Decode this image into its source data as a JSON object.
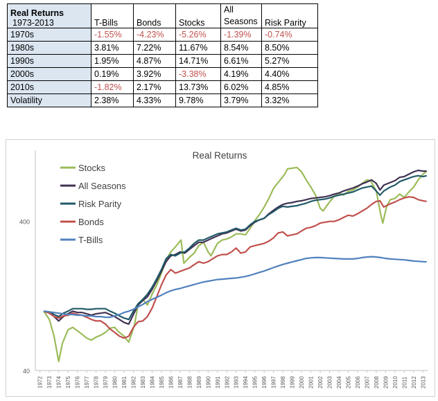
{
  "table": {
    "corner_title": "Real Returns",
    "corner_sub": "1973-2013",
    "headers": [
      "T-Bills",
      "Bonds",
      "Stocks",
      "All\nSeasons",
      "Risk Parity"
    ],
    "rows": [
      {
        "label": "1970s",
        "values": [
          "-1.55%",
          "-4.23%",
          "-5.26%",
          "-1.39%",
          "-0.74%"
        ]
      },
      {
        "label": "1980s",
        "values": [
          "3.81%",
          "7.22%",
          "11.67%",
          "8.54%",
          "8.50%"
        ]
      },
      {
        "label": "1990s",
        "values": [
          "1.95%",
          "4.87%",
          "14.71%",
          "6.61%",
          "5.27%"
        ]
      },
      {
        "label": "2000s",
        "values": [
          "0.19%",
          "3.92%",
          "-3.38%",
          "4.19%",
          "4.40%"
        ]
      },
      {
        "label": "2010s",
        "values": [
          "-1.82%",
          "2.17%",
          "13.73%",
          "6.02%",
          "4.85%"
        ]
      },
      {
        "label": "Volatility",
        "values": [
          "2.38%",
          "4.33%",
          "9.78%",
          "3.79%",
          "3.32%"
        ]
      }
    ]
  },
  "chart_data": {
    "type": "line",
    "title": "Real Returns",
    "xlabel": "",
    "ylabel": "",
    "y_scale": "log",
    "ylim": [
      40,
      1200
    ],
    "yticks": [
      40,
      400
    ],
    "xlim": [
      1972,
      2014
    ],
    "x_tick_labels": [
      "1972",
      "1973",
      "1974",
      "1975",
      "1976",
      "1977",
      "1978",
      "1979",
      "1980",
      "1981",
      "1982",
      "1983",
      "1984",
      "1985",
      "1986",
      "1987",
      "1988",
      "1989",
      "1990",
      "1991",
      "1992",
      "1993",
      "1994",
      "1995",
      "1996",
      "1997",
      "1998",
      "1999",
      "2000",
      "2001",
      "2002",
      "2003",
      "2004",
      "2005",
      "2006",
      "2007",
      "2008",
      "2009",
      "2010",
      "2011",
      "2012",
      "2013"
    ],
    "legend_position": "top-left",
    "series": [
      {
        "name": "Stocks",
        "color": "#9bbb59",
        "x": [
          1972.9,
          1973.5,
          1974.0,
          1974.5,
          1974.9,
          1975.5,
          1976.0,
          1976.5,
          1977.0,
          1977.5,
          1978.0,
          1978.5,
          1979.0,
          1979.5,
          1980.0,
          1980.5,
          1980.9,
          1981.5,
          1982.0,
          1982.6,
          1983.0,
          1983.5,
          1984.0,
          1984.5,
          1985.0,
          1985.5,
          1986.0,
          1986.5,
          1987.0,
          1987.6,
          1987.9,
          1988.5,
          1989.0,
          1989.5,
          1990.0,
          1990.5,
          1990.8,
          1991.5,
          1992.0,
          1992.5,
          1993.0,
          1993.5,
          1994.0,
          1994.5,
          1995.0,
          1995.5,
          1996.0,
          1996.5,
          1997.0,
          1997.5,
          1998.0,
          1998.5,
          1998.7,
          1999.0,
          1999.5,
          2000.0,
          2000.5,
          2001.0,
          2001.5,
          2002.0,
          2002.5,
          2002.8,
          2003.5,
          2004.0,
          2004.5,
          2005.0,
          2005.5,
          2006.0,
          2006.5,
          2007.0,
          2007.5,
          2007.9,
          2008.5,
          2009.0,
          2009.2,
          2009.6,
          2010.0,
          2010.5,
          2011.0,
          2011.5,
          2012.0,
          2012.5,
          2013.0,
          2013.5,
          2013.9
        ],
        "values": [
          100,
          88,
          68,
          46,
          61,
          75,
          78,
          74,
          70,
          66,
          64,
          67,
          69,
          72,
          77,
          78,
          73,
          68,
          62,
          80,
          110,
          120,
          110,
          130,
          150,
          180,
          220,
          250,
          270,
          300,
          210,
          230,
          245,
          275,
          290,
          250,
          235,
          285,
          300,
          305,
          315,
          330,
          330,
          325,
          360,
          405,
          445,
          500,
          570,
          665,
          730,
          800,
          830,
          900,
          910,
          920,
          860,
          760,
          680,
          600,
          490,
          470,
          540,
          590,
          620,
          600,
          635,
          650,
          680,
          720,
          760,
          750,
          640,
          440,
          390,
          500,
          560,
          570,
          610,
          580,
          630,
          680,
          760,
          830,
          870
        ]
      },
      {
        "name": "All Seasons",
        "color": "#403152",
        "x": [
          1972.9,
          1973.5,
          1974.0,
          1974.5,
          1975.0,
          1975.5,
          1976.0,
          1976.5,
          1977.0,
          1977.5,
          1978.0,
          1978.5,
          1979.0,
          1979.5,
          1980.0,
          1980.5,
          1981.0,
          1981.5,
          1982.0,
          1982.5,
          1983.0,
          1983.5,
          1984.0,
          1984.5,
          1985.0,
          1985.5,
          1986.0,
          1986.5,
          1987.0,
          1987.5,
          1988.0,
          1988.5,
          1989.0,
          1989.5,
          1990.0,
          1990.5,
          1991.0,
          1991.5,
          1992.0,
          1992.5,
          1993.0,
          1993.5,
          1994.0,
          1994.5,
          1995.0,
          1995.5,
          1996.0,
          1996.5,
          1997.0,
          1997.5,
          1998.0,
          1998.5,
          1999.0,
          1999.5,
          2000.0,
          2000.5,
          2001.0,
          2001.5,
          2002.0,
          2002.5,
          2003.0,
          2003.5,
          2004.0,
          2004.5,
          2005.0,
          2005.5,
          2006.0,
          2006.5,
          2007.0,
          2007.5,
          2008.0,
          2008.5,
          2008.9,
          2009.3,
          2010.0,
          2010.5,
          2011.0,
          2011.5,
          2012.0,
          2012.5,
          2013.0,
          2013.5,
          2013.9
        ],
        "values": [
          100,
          98,
          92,
          86,
          92,
          96,
          100,
          98,
          98,
          96,
          94,
          96,
          97,
          98,
          95,
          92,
          88,
          84,
          82,
          95,
          110,
          118,
          125,
          140,
          160,
          185,
          215,
          235,
          240,
          250,
          245,
          260,
          275,
          290,
          290,
          300,
          310,
          320,
          330,
          335,
          345,
          355,
          345,
          350,
          375,
          395,
          410,
          420,
          450,
          475,
          500,
          520,
          530,
          535,
          545,
          550,
          560,
          570,
          575,
          580,
          585,
          595,
          610,
          620,
          640,
          655,
          670,
          690,
          715,
          735,
          760,
          720,
          650,
          700,
          730,
          750,
          790,
          800,
          830,
          860,
          880,
          870,
          870
        ]
      },
      {
        "name": "Risk Parity",
        "color": "#215968",
        "x": [
          1972.9,
          1973.5,
          1974.0,
          1974.5,
          1975.0,
          1975.5,
          1976.0,
          1976.5,
          1977.0,
          1977.5,
          1978.0,
          1978.5,
          1979.0,
          1979.5,
          1980.0,
          1980.5,
          1981.0,
          1981.5,
          1982.0,
          1982.5,
          1983.0,
          1983.5,
          1984.0,
          1984.5,
          1985.0,
          1985.5,
          1986.0,
          1986.5,
          1987.0,
          1987.5,
          1988.0,
          1988.5,
          1989.0,
          1989.5,
          1990.0,
          1990.5,
          1991.0,
          1991.5,
          1992.0,
          1992.5,
          1993.0,
          1993.5,
          1994.0,
          1994.5,
          1995.0,
          1995.5,
          1996.0,
          1996.5,
          1997.0,
          1997.5,
          1998.0,
          1998.5,
          1999.0,
          1999.5,
          2000.0,
          2000.5,
          2001.0,
          2001.5,
          2002.0,
          2002.5,
          2003.0,
          2003.5,
          2004.0,
          2004.5,
          2005.0,
          2005.5,
          2006.0,
          2006.5,
          2007.0,
          2007.5,
          2008.0,
          2008.5,
          2008.9,
          2009.3,
          2010.0,
          2010.5,
          2011.0,
          2011.5,
          2012.0,
          2012.5,
          2013.0,
          2013.5,
          2013.9
        ],
        "values": [
          100,
          99,
          95,
          92,
          97,
          100,
          104,
          104,
          104,
          103,
          103,
          104,
          104,
          104,
          100,
          97,
          93,
          90,
          88,
          100,
          112,
          120,
          130,
          145,
          165,
          190,
          225,
          240,
          235,
          245,
          250,
          265,
          285,
          300,
          300,
          310,
          320,
          330,
          335,
          340,
          350,
          360,
          350,
          355,
          380,
          400,
          410,
          420,
          445,
          465,
          490,
          505,
          500,
          505,
          510,
          520,
          530,
          545,
          555,
          560,
          565,
          575,
          590,
          600,
          610,
          620,
          630,
          650,
          670,
          680,
          690,
          640,
          600,
          640,
          680,
          700,
          740,
          760,
          780,
          800,
          810,
          800,
          810
        ]
      },
      {
        "name": "Bonds",
        "color": "#c0504d",
        "x": [
          1972.9,
          1973.5,
          1974.0,
          1974.5,
          1975.0,
          1975.5,
          1976.0,
          1976.5,
          1977.0,
          1977.5,
          1978.0,
          1978.5,
          1979.0,
          1979.5,
          1980.0,
          1980.5,
          1981.0,
          1981.5,
          1982.0,
          1982.5,
          1983.0,
          1983.5,
          1984.0,
          1984.5,
          1985.0,
          1985.5,
          1986.0,
          1986.5,
          1987.0,
          1987.5,
          1988.0,
          1988.5,
          1989.0,
          1989.5,
          1990.0,
          1990.5,
          1991.0,
          1991.5,
          1992.0,
          1992.5,
          1993.0,
          1993.5,
          1994.0,
          1994.5,
          1995.0,
          1995.5,
          1996.0,
          1996.5,
          1997.0,
          1997.5,
          1998.0,
          1998.5,
          1999.0,
          1999.5,
          2000.0,
          2000.5,
          2001.0,
          2001.5,
          2002.0,
          2002.5,
          2003.0,
          2003.5,
          2004.0,
          2004.5,
          2005.0,
          2005.5,
          2006.0,
          2006.5,
          2007.0,
          2007.5,
          2008.0,
          2008.5,
          2008.9,
          2009.3,
          2010.0,
          2010.5,
          2011.0,
          2011.5,
          2012.0,
          2012.5,
          2013.0,
          2013.5,
          2013.9
        ],
        "values": [
          100,
          97,
          92,
          90,
          93,
          94,
          97,
          95,
          94,
          91,
          88,
          86,
          86,
          82,
          76,
          72,
          68,
          66,
          68,
          78,
          85,
          86,
          92,
          105,
          125,
          150,
          175,
          190,
          180,
          185,
          190,
          195,
          205,
          215,
          210,
          215,
          225,
          235,
          240,
          240,
          250,
          265,
          245,
          250,
          270,
          275,
          280,
          285,
          295,
          310,
          335,
          340,
          320,
          325,
          330,
          345,
          360,
          365,
          375,
          390,
          395,
          400,
          400,
          410,
          425,
          440,
          435,
          450,
          470,
          490,
          520,
          545,
          550,
          500,
          525,
          540,
          560,
          575,
          585,
          580,
          560,
          550,
          545
        ]
      },
      {
        "name": "T-Bills",
        "color": "#4f81bd",
        "x": [
          1972.9,
          1973.5,
          1974.0,
          1974.5,
          1975.0,
          1975.5,
          1976.0,
          1976.5,
          1977.0,
          1977.5,
          1978.0,
          1978.5,
          1979.0,
          1979.5,
          1980.0,
          1980.5,
          1981.0,
          1981.5,
          1982.0,
          1982.5,
          1983.0,
          1983.5,
          1984.0,
          1984.5,
          1985.0,
          1985.5,
          1986.0,
          1986.5,
          1987.0,
          1987.5,
          1988.0,
          1988.5,
          1989.0,
          1989.5,
          1990.0,
          1990.5,
          1991.0,
          1991.5,
          1992.0,
          1992.5,
          1993.0,
          1993.5,
          1994.0,
          1994.5,
          1995.0,
          1995.5,
          1996.0,
          1996.5,
          1997.0,
          1997.5,
          1998.0,
          1998.5,
          1999.0,
          1999.5,
          2000.0,
          2000.5,
          2001.0,
          2001.5,
          2002.0,
          2002.5,
          2003.0,
          2003.5,
          2004.0,
          2004.5,
          2005.0,
          2005.5,
          2006.0,
          2006.5,
          2007.0,
          2007.5,
          2008.0,
          2008.5,
          2009.0,
          2009.5,
          2010.0,
          2010.5,
          2011.0,
          2011.5,
          2012.0,
          2012.5,
          2013.0,
          2013.5,
          2013.9
        ],
        "values": [
          100,
          99,
          98,
          97,
          96,
          95,
          95,
          94,
          94,
          93,
          93,
          92,
          92,
          91,
          91,
          93,
          95,
          98,
          100,
          103,
          107,
          111,
          116,
          120,
          124,
          128,
          133,
          137,
          140,
          142,
          145,
          148,
          151,
          154,
          157,
          159,
          161,
          163,
          164,
          165,
          166,
          167,
          169,
          171,
          174,
          178,
          182,
          186,
          191,
          196,
          201,
          206,
          210,
          214,
          218,
          222,
          226,
          228,
          229,
          229,
          228,
          227,
          226,
          225,
          224,
          224,
          224,
          226,
          229,
          231,
          232,
          231,
          229,
          226,
          224,
          223,
          222,
          221,
          219,
          217,
          216,
          215,
          214
        ]
      }
    ]
  }
}
